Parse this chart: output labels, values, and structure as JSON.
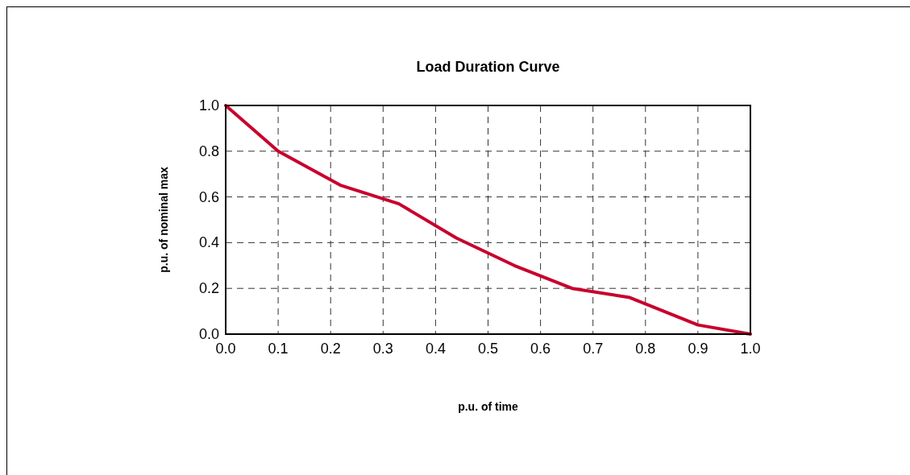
{
  "chart_data": {
    "type": "line",
    "title": "Load Duration Curve",
    "xlabel": "p.u. of time",
    "ylabel": "p.u. of nominal max",
    "x": [
      0,
      0.1,
      0.22,
      0.33,
      0.44,
      0.55,
      0.66,
      0.77,
      0.9,
      1.0
    ],
    "series": [
      {
        "color": "#c8002d",
        "values": [
          1.0,
          0.8,
          0.65,
          0.57,
          0.42,
          0.3,
          0.2,
          0.16,
          0.04,
          0
        ]
      }
    ],
    "xlim": [
      0,
      1
    ],
    "xticks": [
      {
        "value": 0,
        "label": "0.0"
      },
      0.1,
      0.2,
      0.3,
      0.4,
      0.5,
      0.6,
      0.7,
      0.8,
      0.9,
      {
        "value": 1,
        "label": "1.0"
      }
    ],
    "ylim": [
      0,
      1
    ],
    "yticks": [
      {
        "value": 0,
        "label": "0.0"
      },
      0.2,
      0.4,
      0.6,
      0.8,
      {
        "value": 1,
        "label": "1.0"
      }
    ],
    "grid": true,
    "marker": "none",
    "line_style": "solid"
  }
}
